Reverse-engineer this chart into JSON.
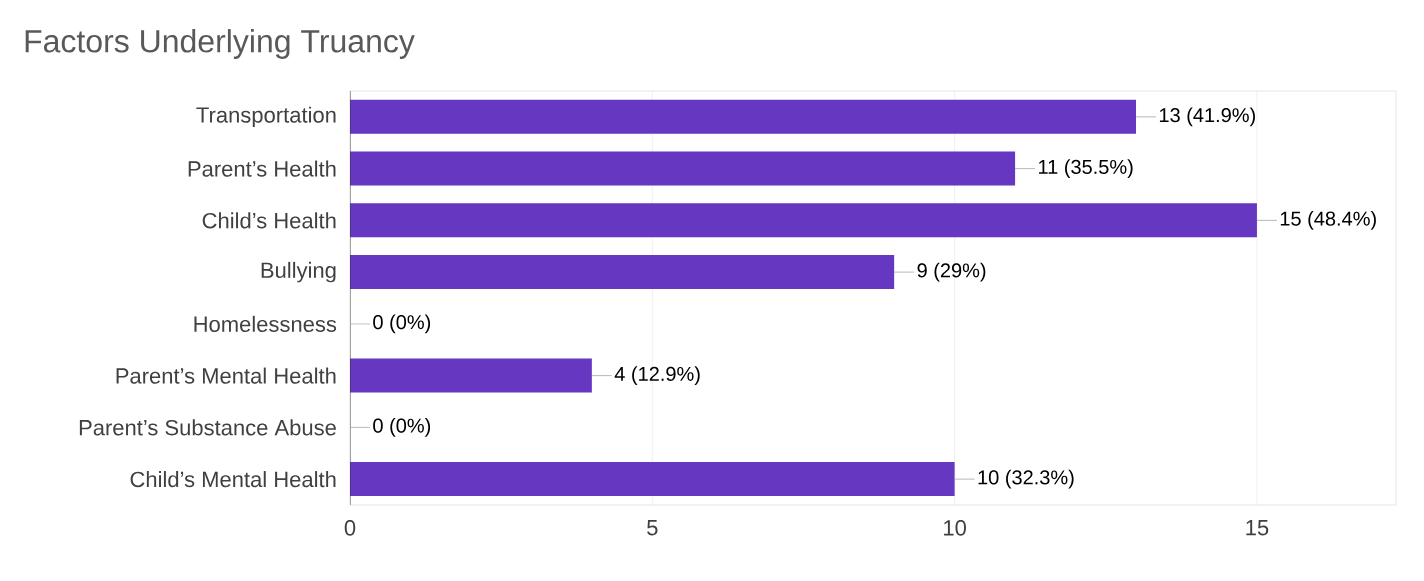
{
  "chart_data": {
    "type": "bar",
    "orientation": "horizontal",
    "title": "Factors Underlying Truancy",
    "categories": [
      "Transportation",
      "Parent’s Health",
      "Child’s Health",
      "Bullying",
      "Homelessness",
      "Parent’s Mental Health",
      "Parent’s Substance Abuse",
      "Child’s Mental Health"
    ],
    "values": [
      13,
      11,
      15,
      9,
      0,
      4,
      0,
      10
    ],
    "value_labels": [
      "13 (41.9%)",
      "11 (35.5%)",
      "15 (48.4%)",
      "9 (29%)",
      "0 (0%)",
      "4 (12.9%)",
      "0 (0%)",
      "10 (32.3%)"
    ],
    "color": "#6637c0",
    "xlim": [
      0,
      17.3
    ],
    "xticks": [
      0,
      5,
      10,
      15
    ],
    "grid": "x"
  }
}
